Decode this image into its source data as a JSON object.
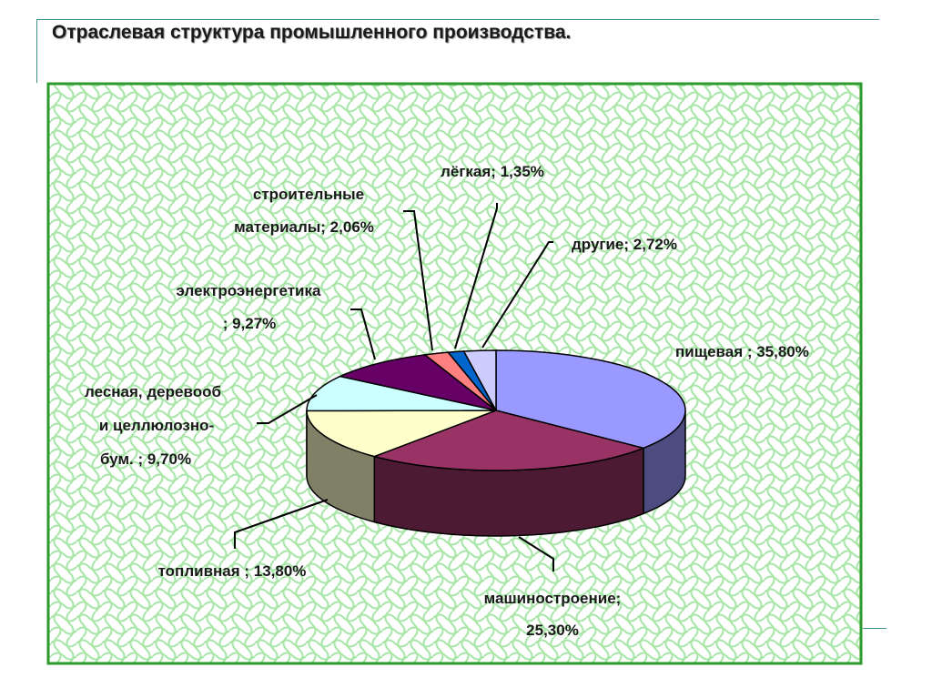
{
  "slide": {
    "title": "Отраслевая структура промышленного производства."
  },
  "chart_data": {
    "type": "pie",
    "style": "3d-exploded-none",
    "unit": "%",
    "slices": [
      {
        "name": "пищевая",
        "value": 35.8,
        "label_lines": [
          "пищевая ; 35,80%"
        ],
        "color": "#9999ff",
        "side_color": "#4c4c80"
      },
      {
        "name": "машиностроение",
        "value": 25.3,
        "label_lines": [
          "машиностроение;",
          "25,30%"
        ],
        "color": "#993366",
        "side_color": "#4d1a33"
      },
      {
        "name": "топливная",
        "value": 13.8,
        "label_lines": [
          "топливная ; 13,80%"
        ],
        "color": "#ffffcc",
        "side_color": "#808066"
      },
      {
        "name": "лесная, деревообработка и целлюлозно-бумажная",
        "value": 9.7,
        "label_lines": [
          "лесная, деревооб",
          "и целлюлозно-",
          "бум. ; 9,70%"
        ],
        "color": "#ccffff",
        "side_color": "#668080"
      },
      {
        "name": "электроэнергетика",
        "value": 9.27,
        "label_lines": [
          "электроэнергетика",
          "; 9,27%"
        ],
        "color": "#660066",
        "side_color": "#330033"
      },
      {
        "name": "строительные материалы",
        "value": 2.06,
        "label_lines": [
          "строительные",
          "материалы; 2,06%"
        ],
        "color": "#ff8080",
        "side_color": "#804040"
      },
      {
        "name": "лёгкая",
        "value": 1.35,
        "label_lines": [
          "лёгкая; 1,35%"
        ],
        "color": "#0066cc",
        "side_color": "#003366"
      },
      {
        "name": "другие",
        "value": 2.72,
        "label_lines": [
          "другие; 2,72%"
        ],
        "color": "#ccccff",
        "side_color": "#666680"
      }
    ],
    "legend": "none",
    "background": {
      "pattern": "green wave",
      "pattern_color": "#a6e6a6",
      "border_color": "#2e9a2e"
    }
  }
}
